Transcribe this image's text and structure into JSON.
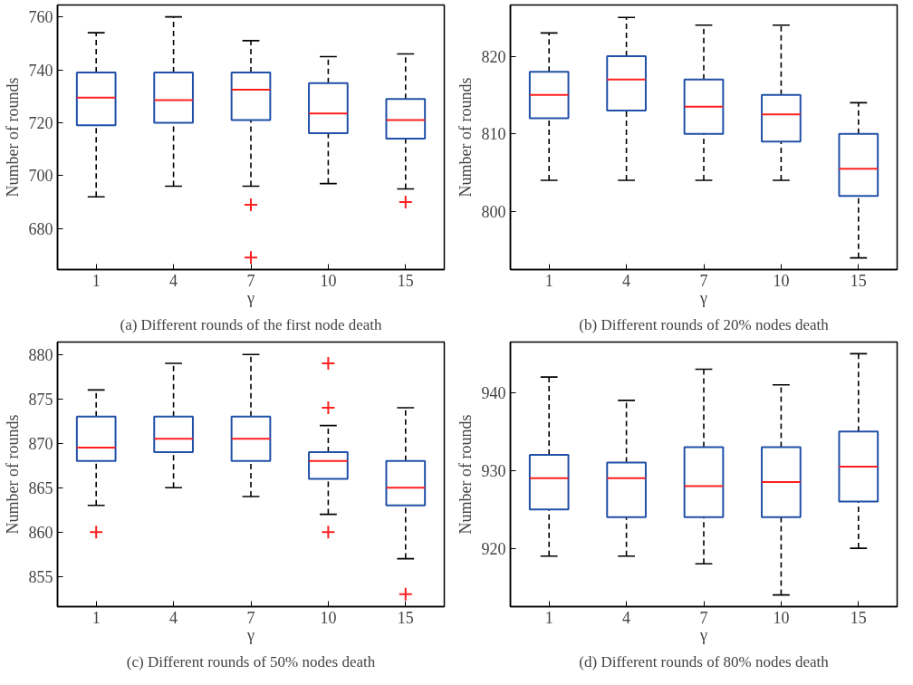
{
  "chart_data": [
    {
      "type": "box",
      "title": "(a) Different rounds of the first node death",
      "xlabel": "γ",
      "ylabel": "Number of rounds",
      "categories": [
        "1",
        "4",
        "7",
        "10",
        "15"
      ],
      "ylim": [
        664.5,
        764.5
      ],
      "yticks": [
        680,
        700,
        720,
        740,
        760
      ],
      "grid": false,
      "marker": "cross",
      "series": [
        {
          "color": "#2050a8",
          "boxes": [
            {
              "low": 692,
              "q1": 719,
              "median": 729.5,
              "q3": 739,
              "high": 754
            },
            {
              "low": 696,
              "q1": 720,
              "median": 728.5,
              "q3": 739,
              "high": 760
            },
            {
              "low": 696,
              "q1": 721,
              "median": 732.5,
              "q3": 739,
              "high": 751,
              "outliers": [
                689,
                669
              ]
            },
            {
              "low": 697,
              "q1": 716,
              "median": 723.5,
              "q3": 735,
              "high": 745
            },
            {
              "low": 695,
              "q1": 714,
              "median": 721,
              "q3": 729,
              "high": 746,
              "outliers": [
                690
              ]
            }
          ]
        }
      ]
    },
    {
      "type": "box",
      "title": "(b) Different rounds of 20% nodes death",
      "xlabel": "γ",
      "ylabel": "Number of rounds",
      "categories": [
        "1",
        "4",
        "7",
        "10",
        "15"
      ],
      "ylim": [
        792.5,
        826.6
      ],
      "yticks": [
        800,
        810,
        820
      ],
      "grid": false,
      "marker": "cross",
      "series": [
        {
          "color": "#2050a8",
          "boxes": [
            {
              "low": 804,
              "q1": 812,
              "median": 815,
              "q3": 818,
              "high": 823
            },
            {
              "low": 804,
              "q1": 813,
              "median": 817,
              "q3": 820,
              "high": 825
            },
            {
              "low": 804,
              "q1": 810,
              "median": 813.5,
              "q3": 817,
              "high": 824
            },
            {
              "low": 804,
              "q1": 809,
              "median": 812.5,
              "q3": 815,
              "high": 824
            },
            {
              "low": 794,
              "q1": 802,
              "median": 805.5,
              "q3": 810,
              "high": 814
            }
          ]
        }
      ]
    },
    {
      "type": "box",
      "title": "(c) Different rounds of 50% nodes death",
      "xlabel": "γ",
      "ylabel": "Number of rounds",
      "categories": [
        "1",
        "4",
        "7",
        "10",
        "15"
      ],
      "ylim": [
        851.6,
        881.4
      ],
      "yticks": [
        855,
        860,
        865,
        870,
        875,
        880
      ],
      "grid": false,
      "marker": "cross",
      "series": [
        {
          "color": "#2050a8",
          "boxes": [
            {
              "low": 863,
              "q1": 868,
              "median": 869.5,
              "q3": 873,
              "high": 876,
              "outliers": [
                860
              ]
            },
            {
              "low": 865,
              "q1": 869,
              "median": 870.5,
              "q3": 873,
              "high": 879
            },
            {
              "low": 864,
              "q1": 868,
              "median": 870.5,
              "q3": 873,
              "high": 880
            },
            {
              "low": 862,
              "q1": 866,
              "median": 868,
              "q3": 869,
              "high": 872,
              "outliers": [
                879,
                874,
                860
              ]
            },
            {
              "low": 857,
              "q1": 863,
              "median": 865,
              "q3": 868,
              "high": 874,
              "outliers": [
                853
              ]
            }
          ]
        }
      ]
    },
    {
      "type": "box",
      "title": "(d) Different rounds of 80% nodes death",
      "xlabel": "γ",
      "ylabel": "Number of rounds",
      "categories": [
        "1",
        "4",
        "7",
        "10",
        "15"
      ],
      "ylim": [
        912.5,
        946.5
      ],
      "yticks": [
        920,
        930,
        940
      ],
      "grid": false,
      "marker": "cross",
      "series": [
        {
          "color": "#2050a8",
          "boxes": [
            {
              "low": 919,
              "q1": 925,
              "median": 929,
              "q3": 932,
              "high": 942
            },
            {
              "low": 919,
              "q1": 924,
              "median": 929,
              "q3": 931,
              "high": 939
            },
            {
              "low": 918,
              "q1": 924,
              "median": 928,
              "q3": 933,
              "high": 943
            },
            {
              "low": 914,
              "q1": 924,
              "median": 928.5,
              "q3": 933,
              "high": 941
            },
            {
              "low": 920,
              "q1": 926,
              "median": 930.5,
              "q3": 935,
              "high": 945
            }
          ]
        }
      ]
    }
  ]
}
